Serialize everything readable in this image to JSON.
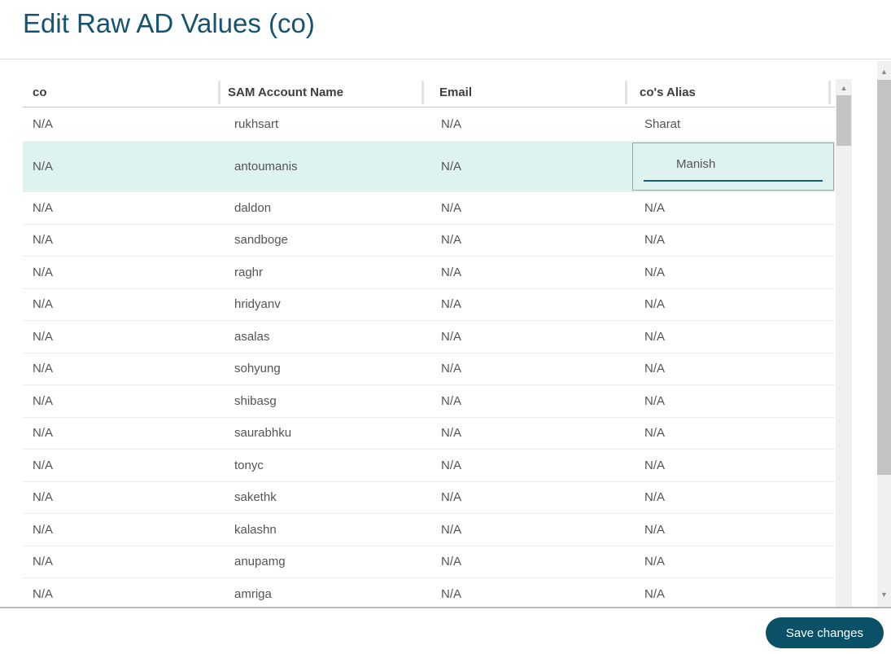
{
  "window": {
    "title": "Edit Raw AD Values (co)"
  },
  "colors": {
    "title_text": "#15536f",
    "accent_button": "#0a5168",
    "highlight_row_bg": "#def3f0",
    "input_underline": "#0d5e7e",
    "row_text": "#545454",
    "header_text": "#3e3e3e"
  },
  "icons": {
    "scroll_up": "▲",
    "scroll_down": "▼"
  },
  "table": {
    "columns": [
      {
        "label": "co"
      },
      {
        "label": "SAM Account Name"
      },
      {
        "label": "Email"
      },
      {
        "label": "co's Alias"
      }
    ],
    "rows": [
      {
        "co": "N/A",
        "sam": "rukhsart",
        "email": "N/A",
        "alias": "Sharat"
      },
      {
        "co": "N/A",
        "sam": "antoumanis",
        "email": "N/A",
        "alias": "Manish",
        "editing": true
      },
      {
        "co": "N/A",
        "sam": "daldon",
        "email": "N/A",
        "alias": "N/A"
      },
      {
        "co": "N/A",
        "sam": "sandboge",
        "email": "N/A",
        "alias": "N/A"
      },
      {
        "co": "N/A",
        "sam": "raghr",
        "email": "N/A",
        "alias": "N/A"
      },
      {
        "co": "N/A",
        "sam": "hridyanv",
        "email": "N/A",
        "alias": "N/A"
      },
      {
        "co": "N/A",
        "sam": "asalas",
        "email": "N/A",
        "alias": "N/A"
      },
      {
        "co": "N/A",
        "sam": "sohyung",
        "email": "N/A",
        "alias": "N/A"
      },
      {
        "co": "N/A",
        "sam": "shibasg",
        "email": "N/A",
        "alias": "N/A"
      },
      {
        "co": "N/A",
        "sam": "saurabhku",
        "email": "N/A",
        "alias": "N/A"
      },
      {
        "co": "N/A",
        "sam": "tonyc",
        "email": "N/A",
        "alias": "N/A"
      },
      {
        "co": "N/A",
        "sam": "sakethk",
        "email": "N/A",
        "alias": "N/A"
      },
      {
        "co": "N/A",
        "sam": "kalashn",
        "email": "N/A",
        "alias": "N/A"
      },
      {
        "co": "N/A",
        "sam": "anupamg",
        "email": "N/A",
        "alias": "N/A"
      },
      {
        "co": "N/A",
        "sam": "amriga",
        "email": "N/A",
        "alias": "N/A"
      }
    ]
  },
  "footer": {
    "save_label": "Save changes"
  }
}
